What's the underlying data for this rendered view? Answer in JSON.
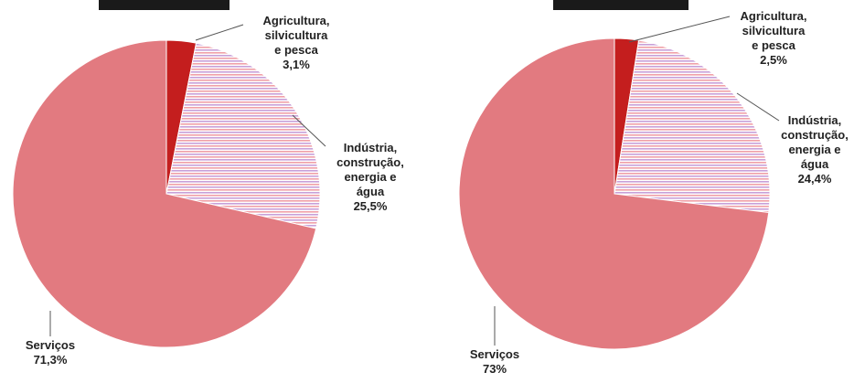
{
  "chart_data": [
    {
      "type": "pie",
      "title": "",
      "slices": [
        {
          "label": "Agricultura, silvicultura e pesca",
          "lines": [
            "Agricultura,",
            "silvicultura",
            "e pesca"
          ],
          "value_text": "3,1%",
          "value": 3.1,
          "color": "#c41e1e",
          "pattern": "solid"
        },
        {
          "label": "Indústria, construção, energia e água",
          "lines": [
            "Indústria,",
            "construção,",
            "energia e",
            "água"
          ],
          "value_text": "25,5%",
          "value": 25.5,
          "color": "#e6a0b0",
          "pattern": "stripes"
        },
        {
          "label": "Serviços",
          "lines": [
            "Serviços"
          ],
          "value_text": "71,3%",
          "value": 71.3,
          "color": "#e27a80",
          "pattern": "solid"
        }
      ]
    },
    {
      "type": "pie",
      "title": "",
      "slices": [
        {
          "label": "Agricultura, silvicultura e pesca",
          "lines": [
            "Agricultura,",
            "silvicultura",
            "e pesca"
          ],
          "value_text": "2,5%",
          "value": 2.5,
          "color": "#c41e1e",
          "pattern": "solid"
        },
        {
          "label": "Indústria, construção, energia e água",
          "lines": [
            "Indústria,",
            "construção,",
            "energia e",
            "água"
          ],
          "value_text": "24,4%",
          "value": 24.4,
          "color": "#e6a0b0",
          "pattern": "stripes"
        },
        {
          "label": "Serviços",
          "lines": [
            "Serviços"
          ],
          "value_text": "73%",
          "value": 73,
          "color": "#e27a80",
          "pattern": "solid"
        }
      ]
    }
  ],
  "colors": {
    "header_box": "#1a1a1a",
    "leader_line": "#555555",
    "stripe_a": "#c8a0d8",
    "stripe_b": "#f0a0a8"
  }
}
